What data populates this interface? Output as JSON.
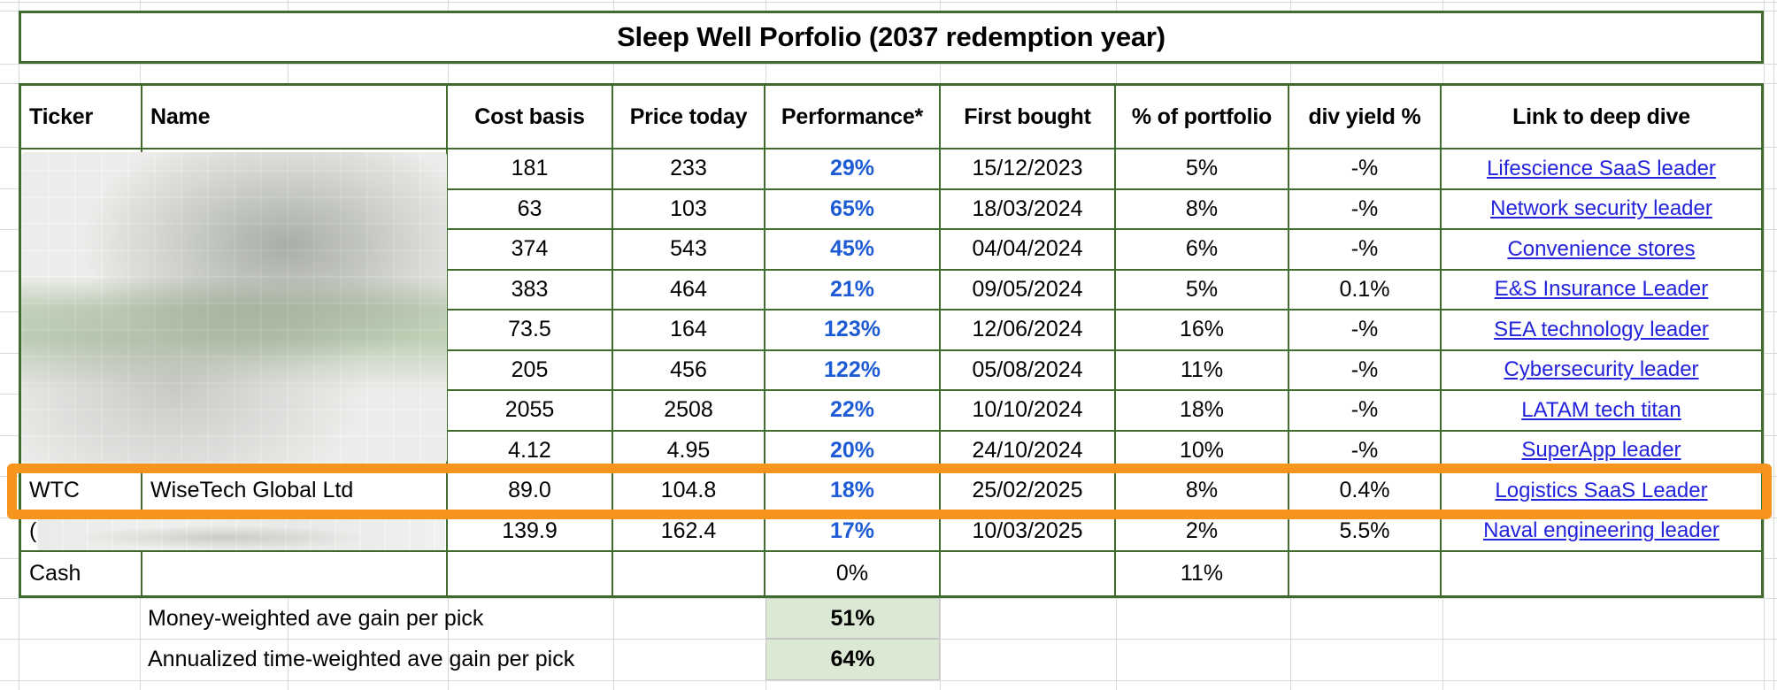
{
  "title": "Sleep Well Porfolio (2037 redemption year)",
  "table": {
    "columns": [
      "Ticker",
      "Name",
      "Cost basis",
      "Price today",
      "Performance*",
      "First bought",
      "% of portfolio",
      "div yield %",
      "Link to deep dive"
    ],
    "rows": [
      {
        "ticker": "",
        "name": "",
        "cost_basis": "181",
        "price_today": "233",
        "performance": "29%",
        "first_bought": "15/12/2023",
        "pct_portfolio": "5%",
        "div_yield": "-%",
        "link": "Lifescience SaaS leader",
        "redacted": true,
        "highlighted": false
      },
      {
        "ticker": "",
        "name": "",
        "cost_basis": "63",
        "price_today": "103",
        "performance": "65%",
        "first_bought": "18/03/2024",
        "pct_portfolio": "8%",
        "div_yield": "-%",
        "link": "Network security leader",
        "redacted": true,
        "highlighted": false
      },
      {
        "ticker": "",
        "name": "",
        "cost_basis": "374",
        "price_today": "543",
        "performance": "45%",
        "first_bought": "04/04/2024",
        "pct_portfolio": "6%",
        "div_yield": "-%",
        "link": "Convenience stores",
        "redacted": true,
        "highlighted": false
      },
      {
        "ticker": "",
        "name": "",
        "cost_basis": "383",
        "price_today": "464",
        "performance": "21%",
        "first_bought": "09/05/2024",
        "pct_portfolio": "5%",
        "div_yield": "0.1%",
        "link": "E&S Insurance Leader",
        "redacted": true,
        "highlighted": false
      },
      {
        "ticker": "",
        "name": "",
        "cost_basis": "73.5",
        "price_today": "164",
        "performance": "123%",
        "first_bought": "12/06/2024",
        "pct_portfolio": "16%",
        "div_yield": "-%",
        "link": "SEA technology leader",
        "redacted": true,
        "highlighted": false
      },
      {
        "ticker": "",
        "name": "",
        "cost_basis": "205",
        "price_today": "456",
        "performance": "122%",
        "first_bought": "05/08/2024",
        "pct_portfolio": "11%",
        "div_yield": "-%",
        "link": "Cybersecurity leader",
        "redacted": true,
        "highlighted": false
      },
      {
        "ticker": "",
        "name": "",
        "cost_basis": "2055",
        "price_today": "2508",
        "performance": "22%",
        "first_bought": "10/10/2024",
        "pct_portfolio": "18%",
        "div_yield": "-%",
        "link": "LATAM tech titan",
        "redacted": true,
        "highlighted": false
      },
      {
        "ticker": "",
        "name": "",
        "cost_basis": "4.12",
        "price_today": "4.95",
        "performance": "20%",
        "first_bought": "24/10/2024",
        "pct_portfolio": "10%",
        "div_yield": "-%",
        "link": "SuperApp leader",
        "redacted": true,
        "highlighted": false
      },
      {
        "ticker": "WTC",
        "name": "WiseTech Global Ltd",
        "cost_basis": "89.0",
        "price_today": "104.8",
        "performance": "18%",
        "first_bought": "25/02/2025",
        "pct_portfolio": "8%",
        "div_yield": "0.4%",
        "link": "Logistics SaaS Leader",
        "redacted": false,
        "highlighted": true
      },
      {
        "ticker": "(",
        "name": "",
        "cost_basis": "139.9",
        "price_today": "162.4",
        "performance": "17%",
        "first_bought": "10/03/2025",
        "pct_portfolio": "2%",
        "div_yield": "5.5%",
        "link": "Naval engineering leader",
        "redacted": true,
        "highlighted": false
      }
    ],
    "cash_row": {
      "ticker": "Cash",
      "name": "",
      "cost_basis": "",
      "price_today": "",
      "performance": "0%",
      "first_bought": "",
      "pct_portfolio": "11%",
      "div_yield": "",
      "link": ""
    }
  },
  "summary": [
    {
      "label": "Money-weighted ave gain per pick",
      "value": "51%"
    },
    {
      "label": "Annualized time-weighted ave gain per pick",
      "value": "64%"
    }
  ],
  "colors": {
    "table_border_green": "#3f6b2d",
    "hyperlink_blue": "#2323dc",
    "performance_blue": "#1e5cd6",
    "highlight_orange": "#f7941e",
    "summary_fill_green": "#dbe8d4",
    "gridline_gray": "#d9d9d9"
  }
}
